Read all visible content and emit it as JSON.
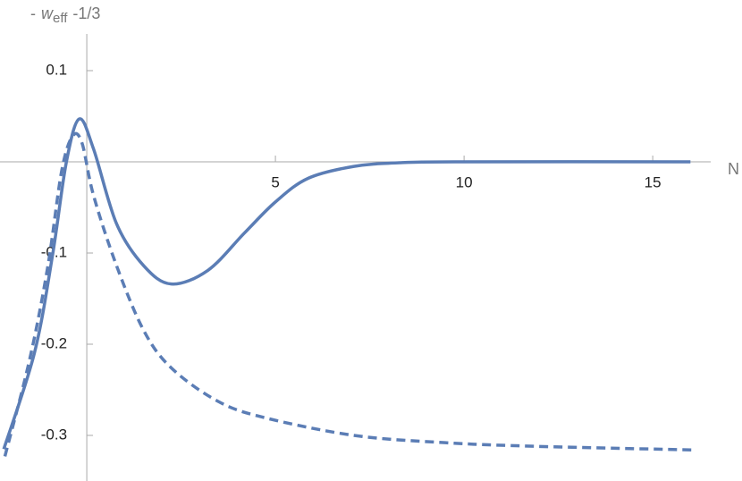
{
  "chart_data": {
    "type": "line",
    "y_label": {
      "prefix": "-",
      "symbol": "w",
      "subscript": "eff",
      "suffix": "-1/3"
    },
    "x_label": "N",
    "xlim": [
      -2.3,
      16.3
    ],
    "ylim": [
      -0.35,
      0.15
    ],
    "xticks": [
      5,
      10,
      15
    ],
    "yticks": [
      0.1,
      -0.1,
      -0.2,
      -0.3
    ],
    "series": [
      {
        "color": "#5b7db5",
        "dash": false,
        "x": [
          -2.2,
          -1.39,
          -0.91,
          -0.54,
          -0.2,
          0.18,
          0.79,
          1.51,
          2.24,
          3.21,
          4.18,
          5,
          5.87,
          7.08,
          8.29,
          10,
          16
        ],
        "values": [
          -0.315,
          -0.21,
          -0.103,
          0,
          0.047,
          0.014,
          -0.068,
          -0.114,
          -0.134,
          -0.119,
          -0.078,
          -0.044,
          -0.018,
          -0.005,
          -0.001,
          0,
          0
        ]
      },
      {
        "color": "#5b7db5",
        "dash": true,
        "x": [
          -2.17,
          -1.51,
          -1.03,
          -0.67,
          -0.38,
          -0.13,
          0.18,
          0.79,
          1.51,
          2.24,
          3.45,
          4.66,
          7.08,
          9.5,
          11.93,
          16.16
        ],
        "values": [
          -0.323,
          -0.216,
          -0.114,
          -0.011,
          0.028,
          0.021,
          -0.037,
          -0.114,
          -0.185,
          -0.226,
          -0.262,
          -0.28,
          -0.3,
          -0.308,
          -0.312,
          -0.316
        ]
      }
    ]
  }
}
